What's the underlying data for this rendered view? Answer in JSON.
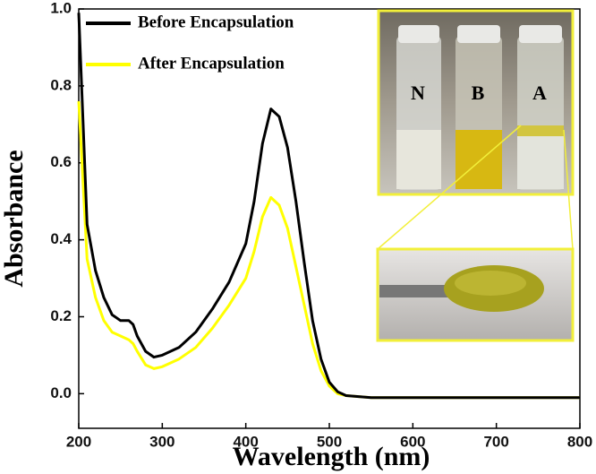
{
  "chart_data": {
    "type": "line",
    "xlabel": "Wavelength (nm)",
    "ylabel": "Absorbance",
    "x": [
      200,
      210,
      220,
      230,
      240,
      250,
      260,
      265,
      270,
      280,
      290,
      300,
      320,
      340,
      360,
      380,
      400,
      410,
      420,
      430,
      440,
      450,
      460,
      470,
      480,
      490,
      500,
      510,
      520,
      550,
      600,
      650,
      690,
      700,
      750,
      800
    ],
    "series": [
      {
        "name": "Before Encapsulation",
        "color": "#000000",
        "values": [
          0.99,
          0.44,
          0.32,
          0.25,
          0.205,
          0.19,
          0.19,
          0.18,
          0.15,
          0.11,
          0.095,
          0.1,
          0.12,
          0.16,
          0.22,
          0.29,
          0.39,
          0.5,
          0.65,
          0.74,
          0.72,
          0.64,
          0.5,
          0.34,
          0.19,
          0.09,
          0.03,
          0.005,
          -0.005,
          -0.01,
          -0.01,
          -0.01,
          -0.01,
          -0.01,
          -0.01,
          -0.01
        ]
      },
      {
        "name": "After Encapsulation",
        "color": "#ffff00",
        "values": [
          0.76,
          0.35,
          0.25,
          0.19,
          0.16,
          0.15,
          0.14,
          0.13,
          0.11,
          0.075,
          0.065,
          0.07,
          0.09,
          0.12,
          0.17,
          0.23,
          0.3,
          0.37,
          0.46,
          0.51,
          0.49,
          0.43,
          0.33,
          0.23,
          0.13,
          0.06,
          0.02,
          0.0,
          -0.005,
          -0.01,
          -0.01,
          -0.01,
          -0.01,
          -0.01,
          -0.01,
          -0.01
        ]
      }
    ],
    "xlim": [
      200,
      800
    ],
    "xticks": [
      200,
      300,
      400,
      500,
      600,
      700,
      800
    ],
    "ylim": [
      -0.09,
      1.0
    ],
    "yticks": [
      {
        "value": 0,
        "label": "0.0"
      },
      0.2,
      0.4,
      0.6,
      0.8,
      {
        "value": 1,
        "label": "1.0"
      }
    ],
    "legend": "upper left",
    "inset_labels": [
      "N",
      "B",
      "A"
    ]
  }
}
